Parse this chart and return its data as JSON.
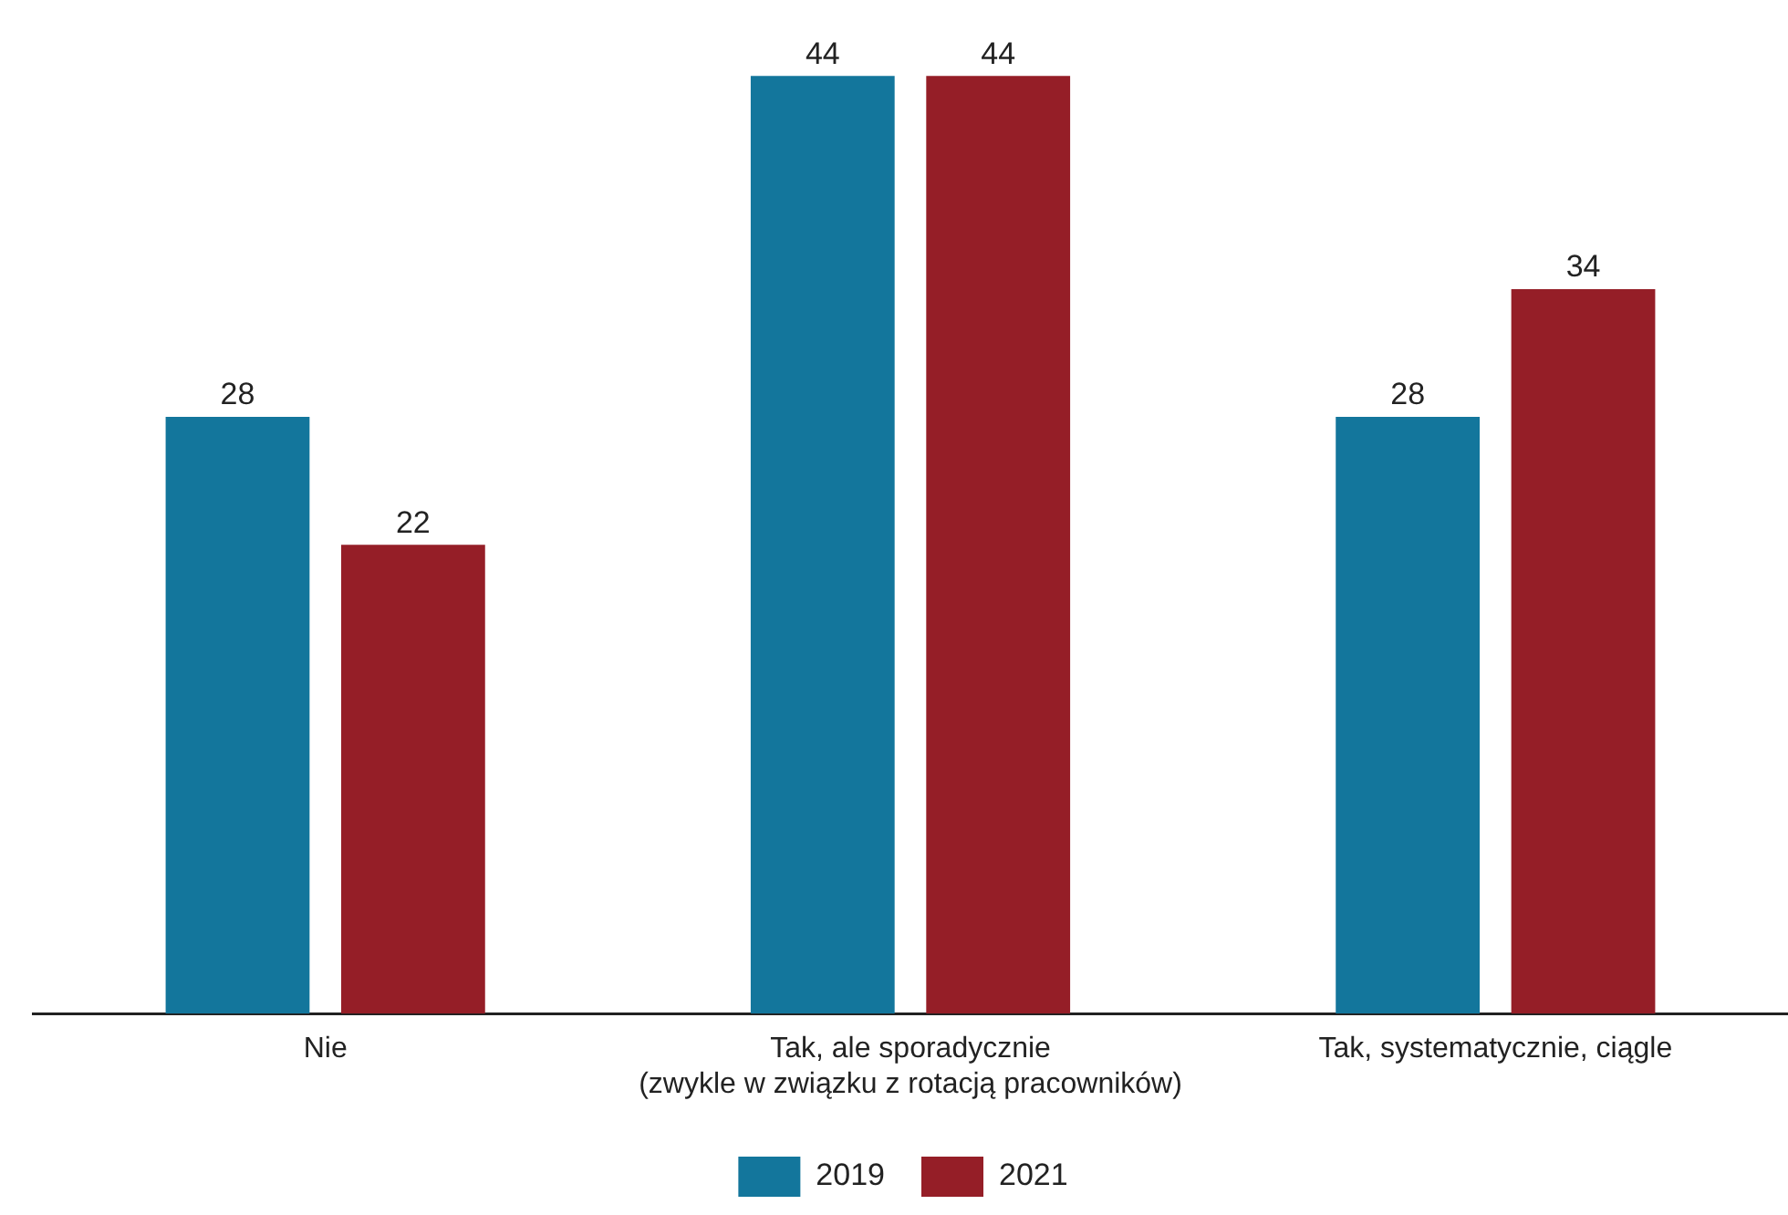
{
  "chart_data": {
    "type": "bar",
    "categories": [
      "Nie",
      "Tak, ale sporadycznie\n(zwykle w związku z rotacją pracowników)",
      "Tak, systematycznie, ciągle"
    ],
    "series": [
      {
        "name": "2019",
        "color": "#13769c",
        "values": [
          28,
          44,
          28
        ]
      },
      {
        "name": "2021",
        "color": "#951e27",
        "values": [
          22,
          44,
          34
        ]
      }
    ],
    "relative": false,
    "data_labels": true,
    "grid": false,
    "legend": "bottom"
  }
}
